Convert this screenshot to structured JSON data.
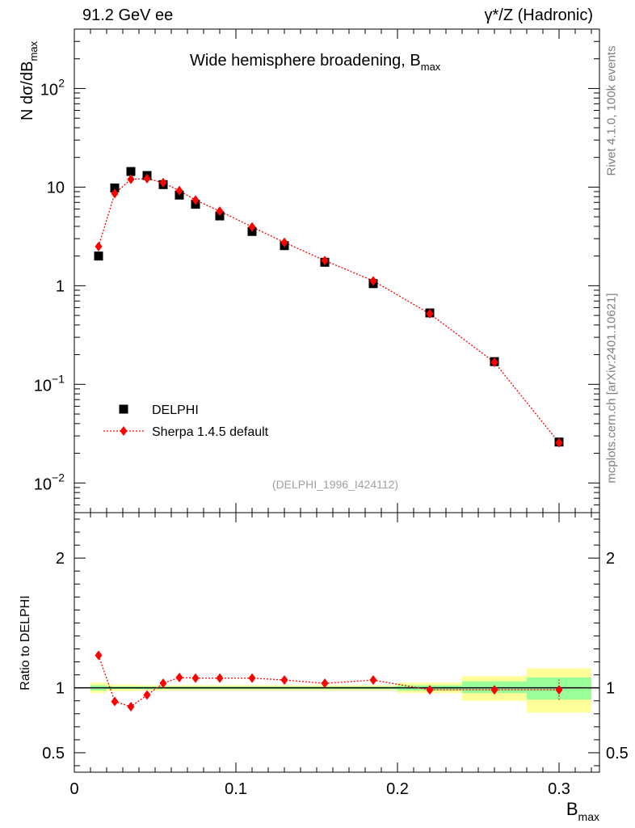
{
  "header": {
    "left": "91.2 GeV ee",
    "right": "γ*/Z (Hadronic)"
  },
  "side": {
    "rivet": "Rivet 4.1.0,  100k events",
    "mcplots": "mcplots.cern.ch [arXiv:2401.10621]"
  },
  "chart_data": [
    {
      "type": "scatter",
      "panel": "main",
      "title": "Wide hemisphere broadening, B_max",
      "title_main": "Wide hemisphere broadening, B",
      "title_sub": "max",
      "ylabel": "N  dσ/dB_max",
      "ylabel_main": "N  dσ/dB",
      "ylabel_sub": "max",
      "yscale": "log",
      "xlim": [
        0,
        0.325
      ],
      "ylim": [
        0.005,
        400
      ],
      "analysis_label": "(DELPHI_1996_I424112)",
      "legend_position": "lower-left",
      "y_ticks": [
        {
          "v": 0.01,
          "base": "10",
          "exp": "−2"
        },
        {
          "v": 0.1,
          "base": "10",
          "exp": "−1"
        },
        {
          "v": 1,
          "base": "1",
          "exp": ""
        },
        {
          "v": 10,
          "base": "10",
          "exp": ""
        },
        {
          "v": 100,
          "base": "10",
          "exp": "2"
        }
      ],
      "series": [
        {
          "name": "DELPHI",
          "marker": "square",
          "color": "#000000",
          "x": [
            0.015,
            0.025,
            0.035,
            0.045,
            0.055,
            0.065,
            0.075,
            0.09,
            0.11,
            0.13,
            0.155,
            0.185,
            0.22,
            0.26,
            0.3
          ],
          "y": [
            2.0,
            9.8,
            14.4,
            13.1,
            10.6,
            8.3,
            6.7,
            5.1,
            3.55,
            2.55,
            1.73,
            1.05,
            0.53,
            0.17,
            0.026
          ]
        },
        {
          "name": "Sherpa 1.4.5 default",
          "marker": "diamond",
          "line": "dotted",
          "color": "#ff0000",
          "x": [
            0.015,
            0.025,
            0.035,
            0.045,
            0.055,
            0.065,
            0.075,
            0.09,
            0.11,
            0.13,
            0.155,
            0.185,
            0.22,
            0.26,
            0.3
          ],
          "y": [
            2.5,
            8.6,
            12.0,
            12.2,
            11.1,
            9.2,
            7.4,
            5.7,
            3.95,
            2.75,
            1.8,
            1.12,
            0.52,
            0.167,
            0.0256
          ]
        }
      ]
    },
    {
      "type": "scatter",
      "panel": "ratio",
      "ylabel": "Ratio to DELPHI",
      "xlabel": "B_max",
      "xlabel_main": "B",
      "xlabel_sub": "max",
      "xlim": [
        0,
        0.325
      ],
      "ylim": [
        0.35,
        2.35
      ],
      "x_ticks": [
        {
          "v": 0,
          "label": "0"
        },
        {
          "v": 0.1,
          "label": "0.1"
        },
        {
          "v": 0.2,
          "label": "0.2"
        },
        {
          "v": 0.3,
          "label": "0.3"
        }
      ],
      "y_ticks": [
        {
          "v": 0.5,
          "label": "0.5"
        },
        {
          "v": 1,
          "label": "1"
        },
        {
          "v": 2,
          "label": "2"
        }
      ],
      "reference_line": 1,
      "uncertainty_bands": [
        {
          "x0": 0.01,
          "x1": 0.02,
          "yellow": [
            0.96,
            1.04
          ],
          "green": [
            0.98,
            1.02
          ]
        },
        {
          "x0": 0.02,
          "x1": 0.03,
          "yellow": [
            0.975,
            1.025
          ],
          "green": [
            0.99,
            1.01
          ]
        },
        {
          "x0": 0.03,
          "x1": 0.04,
          "yellow": [
            0.975,
            1.025
          ],
          "green": [
            0.99,
            1.01
          ]
        },
        {
          "x0": 0.04,
          "x1": 0.05,
          "yellow": [
            0.98,
            1.02
          ],
          "green": [
            0.99,
            1.01
          ]
        },
        {
          "x0": 0.05,
          "x1": 0.06,
          "yellow": [
            0.98,
            1.02
          ],
          "green": [
            0.99,
            1.01
          ]
        },
        {
          "x0": 0.06,
          "x1": 0.07,
          "yellow": [
            0.98,
            1.02
          ],
          "green": [
            0.99,
            1.01
          ]
        },
        {
          "x0": 0.07,
          "x1": 0.08,
          "yellow": [
            0.98,
            1.02
          ],
          "green": [
            0.99,
            1.01
          ]
        },
        {
          "x0": 0.08,
          "x1": 0.1,
          "yellow": [
            0.98,
            1.02
          ],
          "green": [
            0.99,
            1.01
          ]
        },
        {
          "x0": 0.1,
          "x1": 0.12,
          "yellow": [
            0.98,
            1.02
          ],
          "green": [
            0.99,
            1.01
          ]
        },
        {
          "x0": 0.12,
          "x1": 0.14,
          "yellow": [
            0.98,
            1.02
          ],
          "green": [
            0.99,
            1.01
          ]
        },
        {
          "x0": 0.14,
          "x1": 0.17,
          "yellow": [
            0.98,
            1.02
          ],
          "green": [
            0.99,
            1.01
          ]
        },
        {
          "x0": 0.17,
          "x1": 0.2,
          "yellow": [
            0.98,
            1.02
          ],
          "green": [
            0.99,
            1.01
          ]
        },
        {
          "x0": 0.2,
          "x1": 0.24,
          "yellow": [
            0.96,
            1.04
          ],
          "green": [
            0.98,
            1.02
          ]
        },
        {
          "x0": 0.24,
          "x1": 0.28,
          "yellow": [
            0.9,
            1.09
          ],
          "green": [
            0.96,
            1.05
          ]
        },
        {
          "x0": 0.28,
          "x1": 0.32,
          "yellow": [
            0.81,
            1.15
          ],
          "green": [
            0.91,
            1.08
          ]
        }
      ],
      "series": [
        {
          "name": "Sherpa 1.4.5 default",
          "marker": "diamond",
          "line": "dotted",
          "color": "#ff0000",
          "x": [
            0.015,
            0.025,
            0.035,
            0.045,
            0.055,
            0.065,
            0.075,
            0.09,
            0.11,
            0.13,
            0.155,
            0.185,
            0.22,
            0.26,
            0.3
          ],
          "y": [
            1.25,
            0.895,
            0.855,
            0.945,
            1.035,
            1.08,
            1.075,
            1.075,
            1.075,
            1.06,
            1.035,
            1.06,
            0.985,
            0.985,
            0.985
          ],
          "yerr": [
            0,
            0,
            0,
            0,
            0,
            0,
            0,
            0,
            0,
            0,
            0,
            0,
            0,
            0.02,
            0.08
          ]
        }
      ]
    }
  ]
}
